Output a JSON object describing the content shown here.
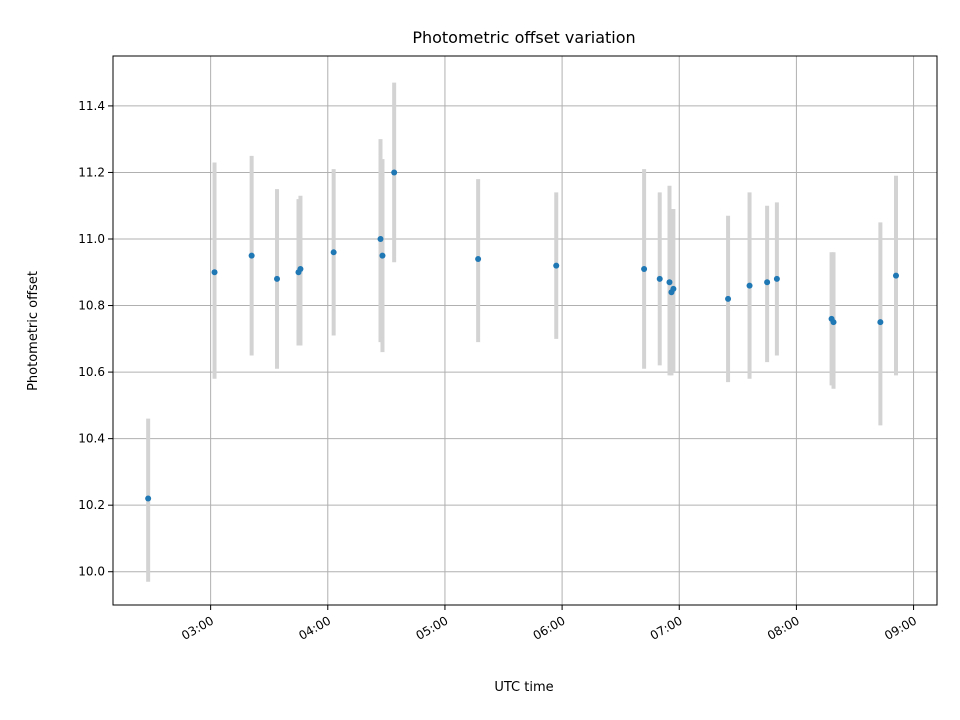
{
  "chart_data": {
    "type": "scatter",
    "title": "Photometric offset variation",
    "xlabel": "UTC time",
    "ylabel": "Photometric offset",
    "x_ticks": [
      "03:00",
      "04:00",
      "05:00",
      "06:00",
      "07:00",
      "08:00",
      "09:00"
    ],
    "y_ticks": [
      "10.0",
      "10.2",
      "10.4",
      "10.6",
      "10.8",
      "11.0",
      "11.2",
      "11.4"
    ],
    "xlim": [
      "02:10",
      "09:12"
    ],
    "ylim": [
      9.9,
      11.55
    ],
    "grid": true,
    "point_color": "#1f77b4",
    "errorbar_color": "#d3d3d3",
    "points": [
      {
        "x": "02:28",
        "y": 10.22,
        "low": 9.97,
        "high": 10.46
      },
      {
        "x": "03:02",
        "y": 10.9,
        "low": 10.58,
        "high": 11.23
      },
      {
        "x": "03:21",
        "y": 10.95,
        "low": 10.65,
        "high": 11.25
      },
      {
        "x": "03:34",
        "y": 10.88,
        "low": 10.61,
        "high": 11.15
      },
      {
        "x": "03:45",
        "y": 10.9,
        "low": 10.68,
        "high": 11.12
      },
      {
        "x": "03:46",
        "y": 10.91,
        "low": 10.68,
        "high": 11.13
      },
      {
        "x": "04:03",
        "y": 10.96,
        "low": 10.71,
        "high": 11.21
      },
      {
        "x": "04:27",
        "y": 11.0,
        "low": 10.69,
        "high": 11.3
      },
      {
        "x": "04:28",
        "y": 10.95,
        "low": 10.66,
        "high": 11.24
      },
      {
        "x": "04:34",
        "y": 11.2,
        "low": 10.93,
        "high": 11.47
      },
      {
        "x": "05:17",
        "y": 10.94,
        "low": 10.69,
        "high": 11.18
      },
      {
        "x": "05:57",
        "y": 10.92,
        "low": 10.7,
        "high": 11.14
      },
      {
        "x": "06:42",
        "y": 10.91,
        "low": 10.61,
        "high": 11.21
      },
      {
        "x": "06:50",
        "y": 10.88,
        "low": 10.62,
        "high": 11.14
      },
      {
        "x": "06:55",
        "y": 10.87,
        "low": 10.59,
        "high": 11.16
      },
      {
        "x": "06:56",
        "y": 10.84,
        "low": 10.59,
        "high": 11.09
      },
      {
        "x": "06:57",
        "y": 10.85,
        "low": 10.6,
        "high": 11.09
      },
      {
        "x": "07:25",
        "y": 10.82,
        "low": 10.57,
        "high": 11.07
      },
      {
        "x": "07:36",
        "y": 10.86,
        "low": 10.58,
        "high": 11.14
      },
      {
        "x": "07:45",
        "y": 10.87,
        "low": 10.63,
        "high": 11.1
      },
      {
        "x": "07:50",
        "y": 10.88,
        "low": 10.65,
        "high": 11.11
      },
      {
        "x": "08:18",
        "y": 10.76,
        "low": 10.56,
        "high": 10.96
      },
      {
        "x": "08:19",
        "y": 10.75,
        "low": 10.55,
        "high": 10.96
      },
      {
        "x": "08:43",
        "y": 10.75,
        "low": 10.44,
        "high": 11.05
      },
      {
        "x": "08:51",
        "y": 10.89,
        "low": 10.59,
        "high": 11.19
      }
    ]
  }
}
